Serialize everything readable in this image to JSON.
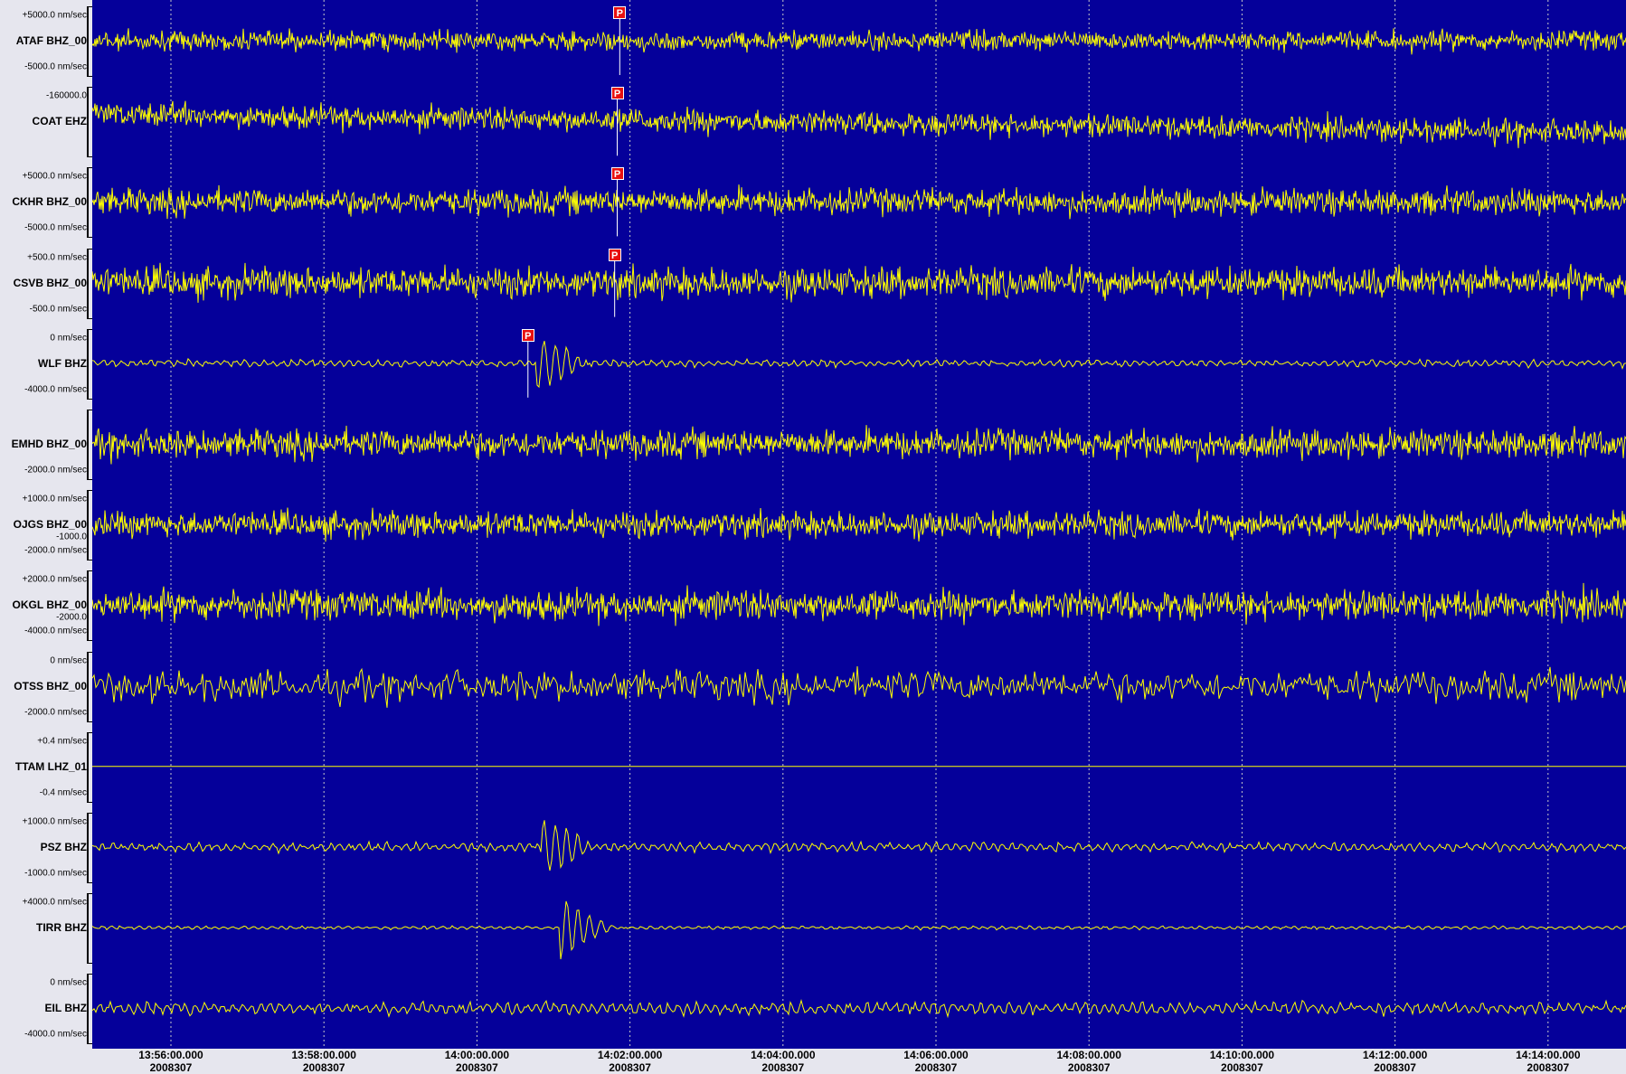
{
  "chart_data": {
    "type": "line",
    "x_axis": {
      "ticks": [
        {
          "time": "13:56:00.000",
          "day": "2008307"
        },
        {
          "time": "13:58:00.000",
          "day": "2008307"
        },
        {
          "time": "14:00:00.000",
          "day": "2008307"
        },
        {
          "time": "14:02:00.000",
          "day": "2008307"
        },
        {
          "time": "14:04:00.000",
          "day": "2008307"
        },
        {
          "time": "14:06:00.000",
          "day": "2008307"
        },
        {
          "time": "14:08:00.000",
          "day": "2008307"
        },
        {
          "time": "14:10:00.000",
          "day": "2008307"
        },
        {
          "time": "14:12:00.000",
          "day": "2008307"
        },
        {
          "time": "14:14:00.000",
          "day": "2008307"
        }
      ],
      "grid": true
    },
    "channels": [
      {
        "name": "ATAF BHZ_00",
        "scale_top": "+5000.0 nm/sec",
        "scale_bottom": "-5000.0 nm/sec",
        "p_pick": "14:01:52"
      },
      {
        "name": "COAT EHZ",
        "scale_top": "-160000.0",
        "scale_bottom": "",
        "p_pick": "14:01:50"
      },
      {
        "name": "CKHR BHZ_00",
        "scale_top": "+5000.0 nm/sec",
        "scale_bottom": "-5000.0 nm/sec",
        "p_pick": "14:01:50"
      },
      {
        "name": "CSVB BHZ_00",
        "scale_top": "+500.0 nm/sec",
        "scale_bottom": "-500.0 nm/sec",
        "p_pick": "14:01:48"
      },
      {
        "name": "WLF BHZ",
        "scale_top": "0 nm/sec",
        "scale_bottom": "-4000.0 nm/sec",
        "p_pick": "14:00:40"
      },
      {
        "name": "EMHD BHZ_00",
        "scale_top": "",
        "scale_bottom": "-2000.0 nm/sec",
        "p_pick": ""
      },
      {
        "name": "OJGS BHZ_00",
        "scale_top": "+1000.0 nm/sec",
        "scale_bottom": "-2000.0 nm/sec",
        "scale_mid": "-1000.0",
        "p_pick": ""
      },
      {
        "name": "OKGL BHZ_00",
        "scale_top": "+2000.0 nm/sec",
        "scale_bottom": "-4000.0 nm/sec",
        "scale_mid": "-2000.0",
        "p_pick": ""
      },
      {
        "name": "OTSS BHZ_00",
        "scale_top": "0 nm/sec",
        "scale_bottom": "-2000.0 nm/sec",
        "p_pick": ""
      },
      {
        "name": "TTAM LHZ_01",
        "scale_top": "+0.4 nm/sec",
        "scale_bottom": "-0.4 nm/sec",
        "p_pick": ""
      },
      {
        "name": "PSZ BHZ",
        "scale_top": "+1000.0 nm/sec",
        "scale_bottom": "-1000.0 nm/sec",
        "p_pick": ""
      },
      {
        "name": "TIRR BHZ",
        "scale_top": "+4000.0 nm/sec",
        "scale_bottom": "",
        "p_pick": ""
      },
      {
        "name": "EIL BHZ",
        "scale_top": "0 nm/sec",
        "scale_bottom": "-4000.0 nm/sec",
        "p_pick": ""
      }
    ],
    "pick_label": "P",
    "colors": {
      "background": "#05009a",
      "trace": "#ffff00",
      "pick": "#e81010",
      "panel": "#e6e6ee"
    }
  }
}
